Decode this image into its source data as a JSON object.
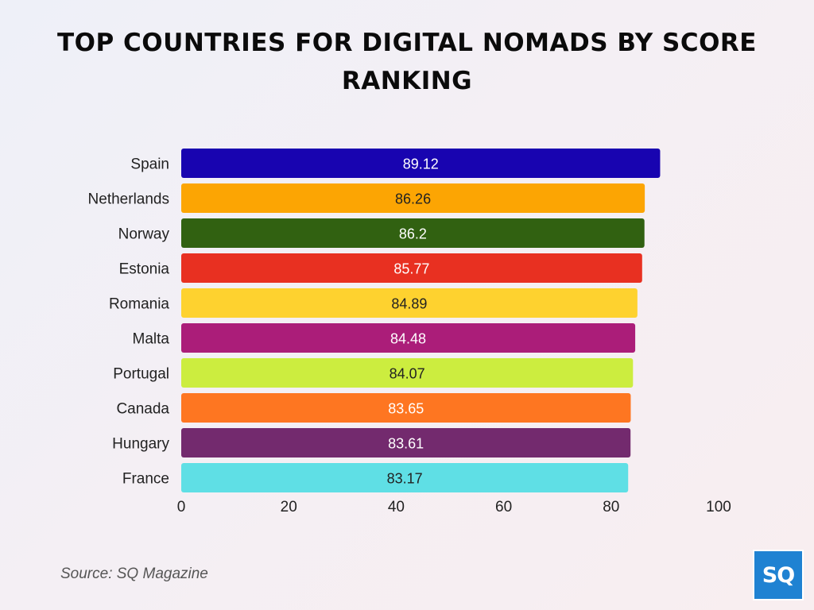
{
  "title": "TOP COUNTRIES FOR DIGITAL NOMADS BY SCORE RANKING",
  "source": "Source: SQ Magazine",
  "logo_text": "SQ",
  "colors": {
    "logo_bg": "#1f82d2",
    "title": "#0b0b0b"
  },
  "chart_data": {
    "type": "bar",
    "orientation": "horizontal",
    "title": "TOP COUNTRIES FOR DIGITAL NOMADS BY SCORE RANKING",
    "xlabel": "",
    "ylabel": "",
    "xlim": [
      0,
      100
    ],
    "x_ticks": [
      0,
      20,
      40,
      60,
      80,
      100
    ],
    "grid": false,
    "legend": "none",
    "categories": [
      "Spain",
      "Netherlands",
      "Norway",
      "Estonia",
      "Romania",
      "Malta",
      "Portugal",
      "Canada",
      "Hungary",
      "France"
    ],
    "values": [
      89.12,
      86.26,
      86.2,
      85.77,
      84.89,
      84.48,
      84.07,
      83.65,
      83.61,
      83.17
    ],
    "value_labels": [
      "89.12",
      "86.26",
      "86.2",
      "85.77",
      "84.89",
      "84.48",
      "84.07",
      "83.65",
      "83.61",
      "83.17"
    ],
    "bar_colors": [
      "#1804b0",
      "#fca503",
      "#316111",
      "#e83021",
      "#fed22f",
      "#ab1d79",
      "#cced3f",
      "#fe7621",
      "#732a6e",
      "#5fdfe5"
    ],
    "label_colors": [
      "#ffffff",
      "#222222",
      "#ffffff",
      "#ffffff",
      "#222222",
      "#ffffff",
      "#222222",
      "#ffffff",
      "#ffffff",
      "#222222"
    ]
  }
}
